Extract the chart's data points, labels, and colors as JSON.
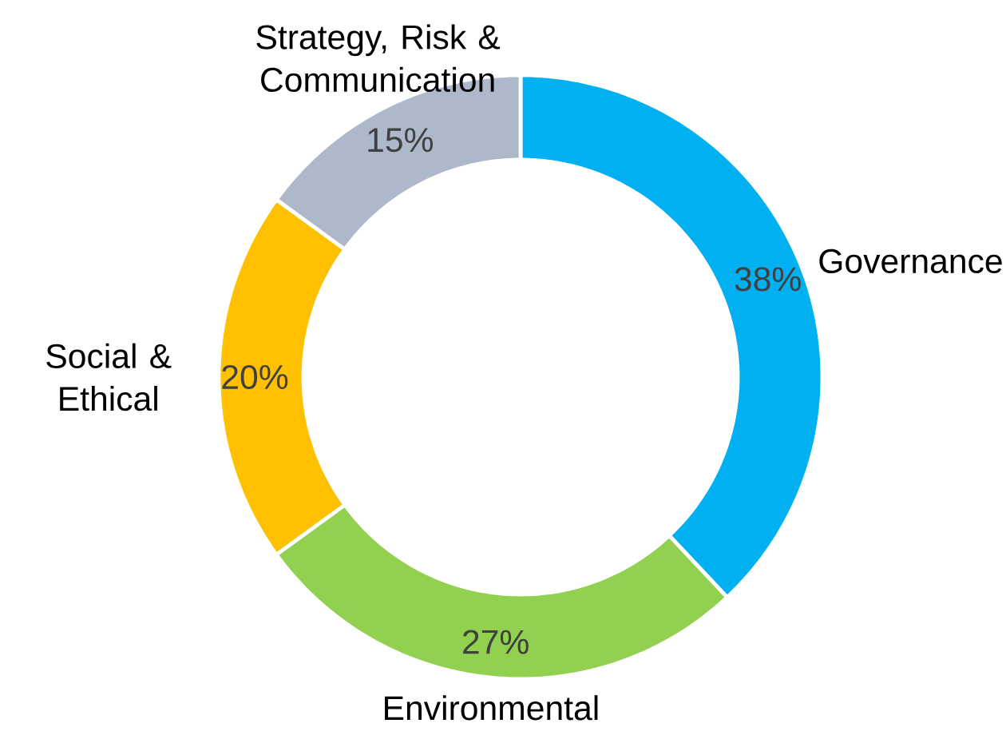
{
  "chart_data": {
    "type": "donut",
    "categories": [
      "Governance",
      "Environmental",
      "Social & Ethical",
      "Strategy, Risk & Communication"
    ],
    "values": [
      38,
      27,
      20,
      15
    ],
    "colors": [
      "#00b0f0",
      "#92d050",
      "#ffc000",
      "#adb9ca"
    ],
    "value_labels": [
      "38%",
      "27%",
      "20%",
      "15%"
    ]
  }
}
